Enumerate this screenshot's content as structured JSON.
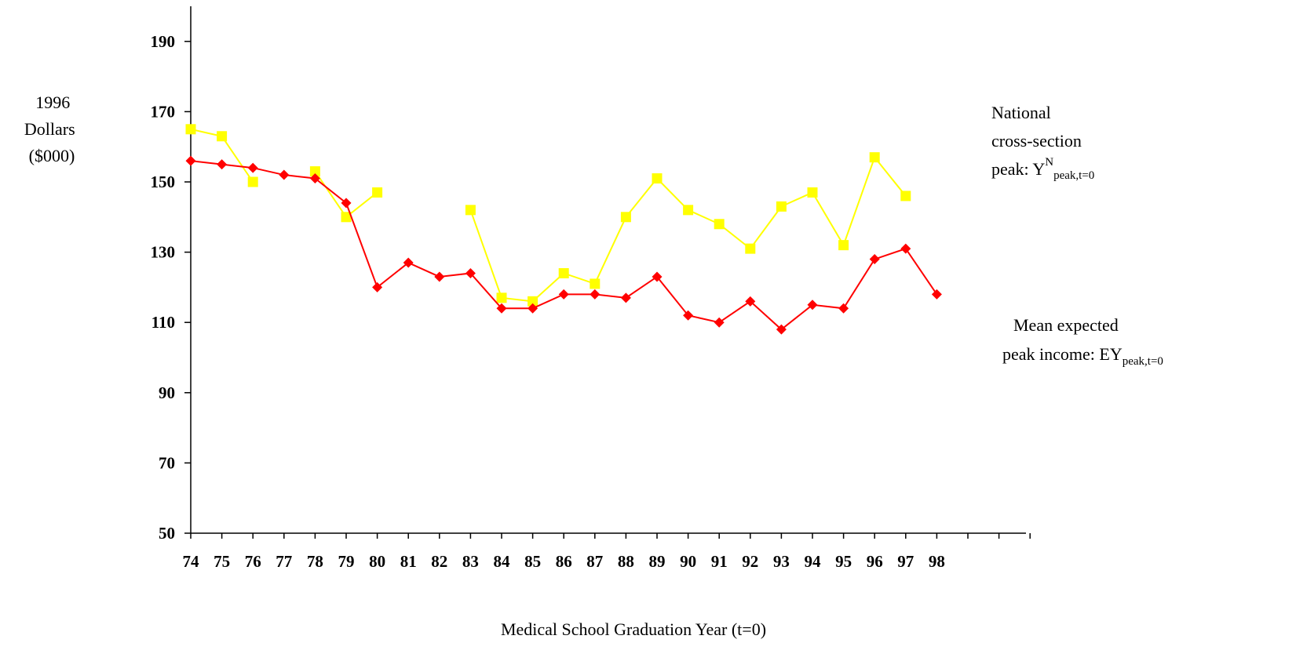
{
  "chart_data": {
    "type": "line",
    "title": "",
    "ylabel": [
      "1996",
      "Dollars",
      "($000)"
    ],
    "xlabel": "Medical School Graduation Year (t=0)",
    "ylim": [
      50,
      200
    ],
    "yticks": [
      50,
      70,
      90,
      110,
      130,
      150,
      170,
      190
    ],
    "grid": false,
    "legend": "none",
    "x": [
      "74",
      "75",
      "76",
      "77",
      "78",
      "79",
      "80",
      "81",
      "82",
      "83",
      "84",
      "85",
      "86",
      "87",
      "88",
      "89",
      "90",
      "91",
      "92",
      "93",
      "94",
      "95",
      "96",
      "97",
      "98"
    ],
    "series": [
      {
        "color": "#ffff00",
        "marker": "square",
        "values": [
          165,
          163,
          150,
          null,
          153,
          140,
          147,
          null,
          null,
          142,
          117,
          116,
          124,
          121,
          140,
          151,
          142,
          138,
          131,
          143,
          147,
          132,
          157,
          146,
          null
        ],
        "annotation": {
          "lines": [
            "National",
            "cross-section"
          ],
          "main": "peak: Y",
          "sup": "N",
          "sub": "peak,t=0"
        }
      },
      {
        "color": "#ff0000",
        "marker": "diamond",
        "values": [
          156,
          155,
          154,
          152,
          151,
          144,
          120,
          127,
          123,
          124,
          114,
          114,
          118,
          118,
          117,
          123,
          112,
          110,
          116,
          108,
          115,
          114,
          128,
          131,
          118
        ],
        "annotation": {
          "lines": [
            "Mean expected"
          ],
          "main": "peak income: EY",
          "sup": "",
          "sub": "peak,t=0"
        }
      }
    ]
  }
}
